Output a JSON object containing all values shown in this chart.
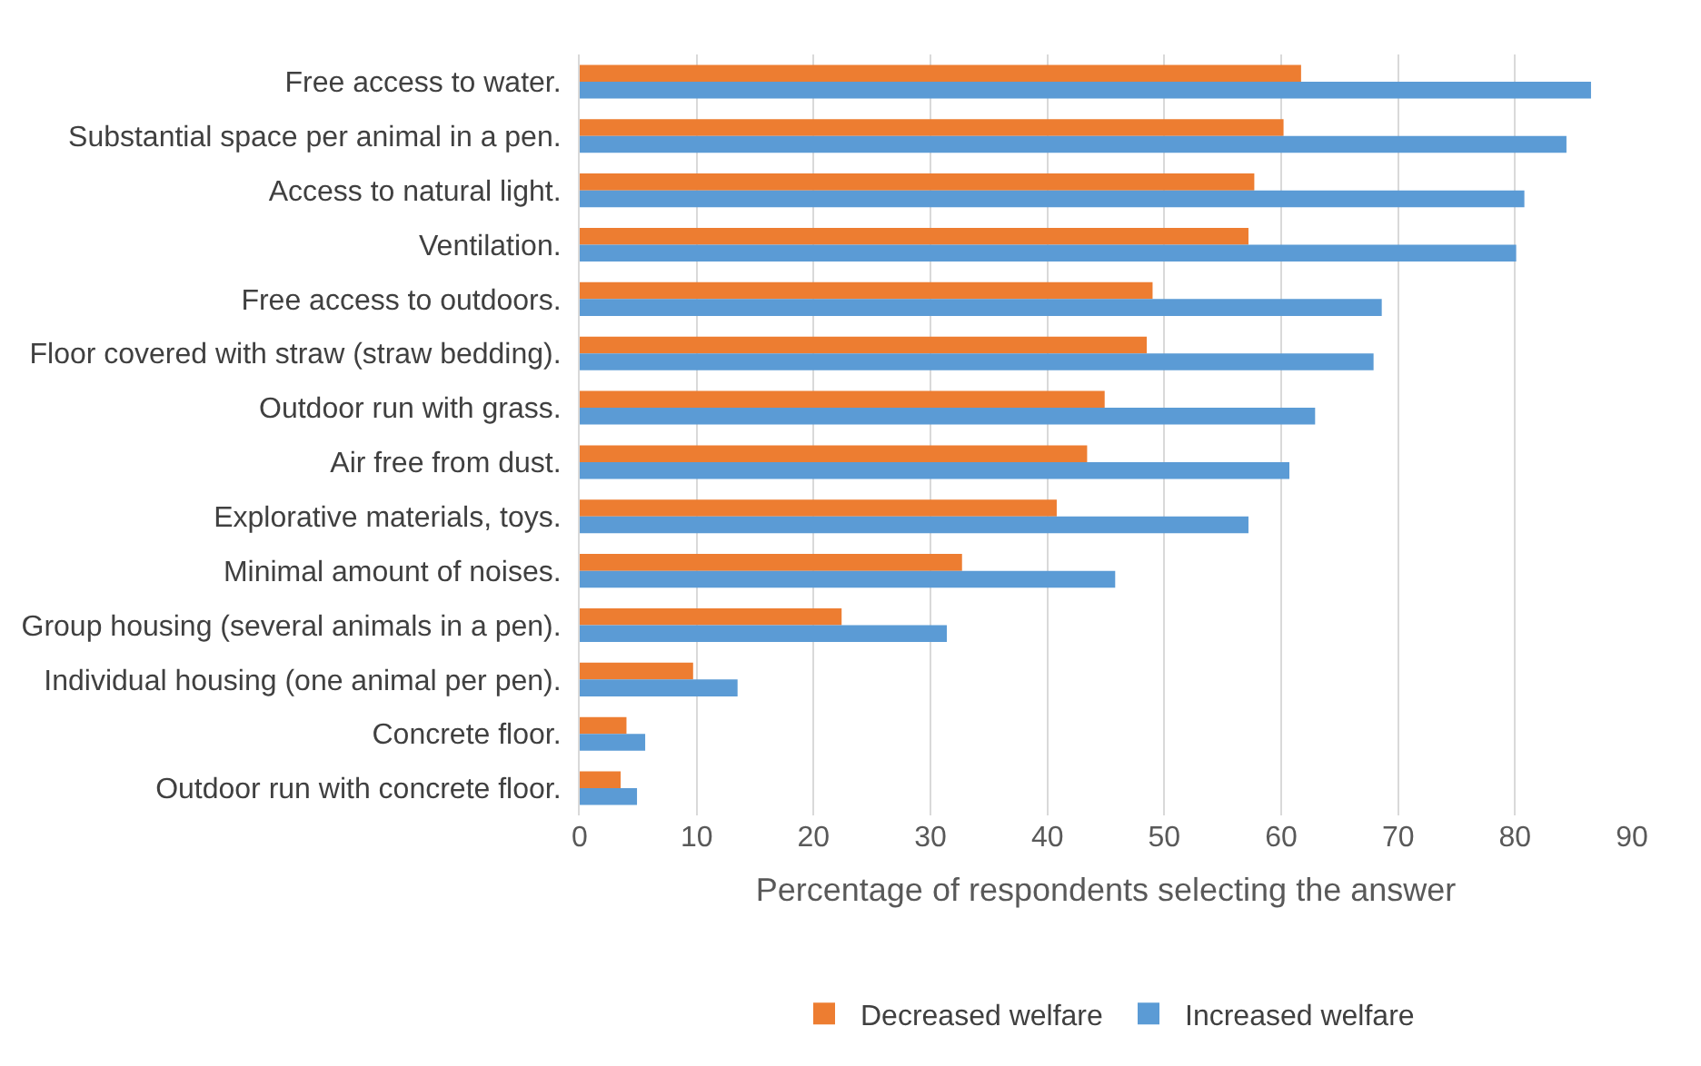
{
  "chart_data": {
    "type": "bar",
    "orientation": "horizontal",
    "xlabel": "Percentage of respondents selecting the answer",
    "categories": [
      "Free access to water.",
      "Substantial space per animal in a pen.",
      "Access to natural light.",
      "Ventilation.",
      "Free access to outdoors.",
      "Floor covered with straw (straw bedding).",
      "Outdoor run with grass.",
      "Air free from dust.",
      "Explorative materials, toys.",
      "Minimal amount of noises.",
      "Group housing (several animals in a pen).",
      "Individual housing (one animal per pen).",
      "Concrete floor.",
      "Outdoor run with concrete floor."
    ],
    "series": [
      {
        "name": "Decreased welfare",
        "color": "#ed7d31",
        "values": [
          61.7,
          60.2,
          57.7,
          57.2,
          49.0,
          48.5,
          44.9,
          43.4,
          40.8,
          32.7,
          22.4,
          9.7,
          4.0,
          3.5
        ]
      },
      {
        "name": "Increased welfare",
        "color": "#5b9bd5",
        "values": [
          86.5,
          84.4,
          80.8,
          80.1,
          68.6,
          67.9,
          62.9,
          60.7,
          57.2,
          45.8,
          31.4,
          13.5,
          5.6,
          4.9
        ]
      }
    ],
    "xlim": [
      0,
      90
    ],
    "xticks": [
      0,
      10,
      20,
      30,
      40,
      50,
      60,
      70,
      80,
      90
    ],
    "grid": "x",
    "legend": "bottom"
  }
}
